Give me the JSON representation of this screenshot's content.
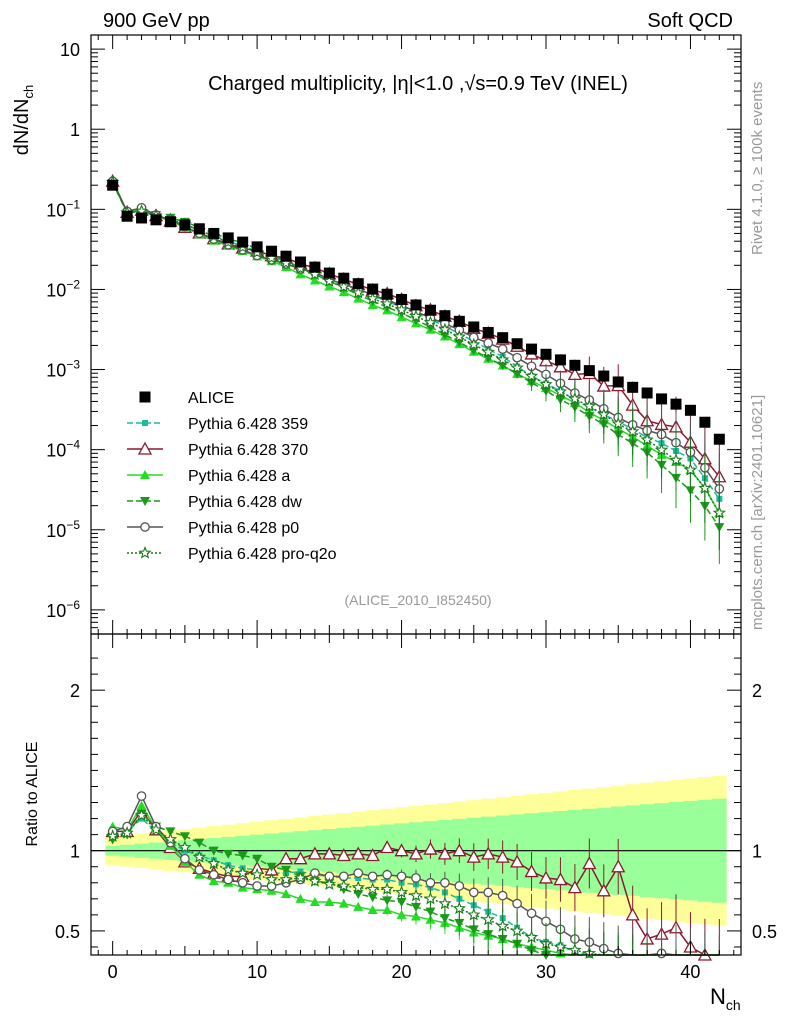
{
  "header": {
    "left": "900 GeV pp",
    "right": "Soft QCD"
  },
  "side_labels": {
    "rivet": "Rivet 4.1.0, ≥ 100k events",
    "mcplots": "mcplots.cern.ch [arXiv:2401.10621]"
  },
  "chart_data": [
    {
      "type": "scatter",
      "panel": "main",
      "title": "Charged multiplicity, |η|<1.0 ,√s=0.9 TeV (INEL)",
      "xlabel": "N",
      "xlabel_sub": "ch",
      "ylabel": "dN/dN",
      "ylabel_sub": "ch",
      "yscale": "log",
      "xlim": [
        -1.5,
        43.5
      ],
      "ylim": [
        5e-07,
        15
      ],
      "x_ticks": [
        0,
        10,
        20,
        30,
        40
      ],
      "y_ticks": [
        {
          "v": 10,
          "base": "10",
          "exp": ""
        },
        {
          "v": 1,
          "base": "1",
          "exp": ""
        },
        {
          "v": 0.1,
          "base": "10",
          "exp": "−1"
        },
        {
          "v": 0.01,
          "base": "10",
          "exp": "−2"
        },
        {
          "v": 0.001,
          "base": "10",
          "exp": "−3"
        },
        {
          "v": 0.0001,
          "base": "10",
          "exp": "−4"
        },
        {
          "v": 1e-05,
          "base": "10",
          "exp": "−5"
        },
        {
          "v": 1e-06,
          "base": "10",
          "exp": "−6"
        }
      ],
      "analysis_id": "(ALICE_2010_I852450)",
      "legend": [
        {
          "name": "ALICE",
          "color": "#000000",
          "marker": "square",
          "dash": "none"
        },
        {
          "name": "Pythia 6.428 359",
          "color": "#1abc9c",
          "marker": "square-small",
          "dash": "dashed"
        },
        {
          "name": "Pythia 6.428 370",
          "color": "#8b1a2e",
          "marker": "triangle-open",
          "dash": "solid"
        },
        {
          "name": "Pythia 6.428 a",
          "color": "#22dd22",
          "marker": "triangle",
          "dash": "solid"
        },
        {
          "name": "Pythia 6.428 dw",
          "color": "#1a9a1a",
          "marker": "triangle-down",
          "dash": "dashed"
        },
        {
          "name": "Pythia 6.428 p0",
          "color": "#555555",
          "marker": "circle-open",
          "dash": "solid"
        },
        {
          "name": "Pythia 6.428 pro-q2o",
          "color": "#1a7a1a",
          "marker": "star-open",
          "dash": "dotted"
        }
      ],
      "x": [
        0,
        1,
        2,
        3,
        4,
        5,
        6,
        7,
        8,
        9,
        10,
        11,
        12,
        13,
        14,
        15,
        16,
        17,
        18,
        19,
        20,
        21,
        22,
        23,
        24,
        25,
        26,
        27,
        28,
        29,
        30,
        31,
        32,
        33,
        34,
        35,
        36,
        37,
        38,
        39,
        40,
        41,
        42
      ],
      "data_values": [
        0.2,
        0.082,
        0.078,
        0.074,
        0.07,
        0.064,
        0.057,
        0.05,
        0.044,
        0.039,
        0.034,
        0.03,
        0.026,
        0.022,
        0.019,
        0.016,
        0.0138,
        0.0118,
        0.0101,
        0.0087,
        0.0075,
        0.0064,
        0.0055,
        0.0047,
        0.004,
        0.0034,
        0.0029,
        0.0025,
        0.0021,
        0.0018,
        0.00155,
        0.00132,
        0.00113,
        0.00097,
        0.00083,
        0.0007,
        0.0006,
        0.00051,
        0.00043,
        0.00037,
        0.00031,
        0.00022,
        0.000135
      ],
      "series": [
        {
          "name": "Pythia 6.428 359",
          "ratio": [
            1.1,
            1.12,
            1.2,
            1.12,
            1.05,
            1.0,
            0.97,
            0.94,
            0.91,
            0.89,
            0.88,
            0.86,
            0.86,
            0.87,
            0.85,
            0.84,
            0.83,
            0.83,
            0.82,
            0.82,
            0.8,
            0.79,
            0.77,
            0.74,
            0.7,
            0.66,
            0.62,
            0.58,
            0.52,
            0.46,
            0.43,
            0.41,
            0.37,
            0.35,
            0.33,
            0.32,
            0.3,
            0.28,
            0.28,
            0.26,
            0.25,
            0.2,
            0.18
          ]
        },
        {
          "name": "Pythia 6.428 370",
          "ratio": [
            1.12,
            1.12,
            1.25,
            1.13,
            1.02,
            0.93,
            0.89,
            0.86,
            0.84,
            0.84,
            0.89,
            0.88,
            0.95,
            0.95,
            0.98,
            0.98,
            0.97,
            0.98,
            0.97,
            1.02,
            1.0,
            0.98,
            1.01,
            0.98,
            1.0,
            0.96,
            0.98,
            0.96,
            0.93,
            0.87,
            0.83,
            0.82,
            0.77,
            0.92,
            0.75,
            0.9,
            0.6,
            0.45,
            0.48,
            0.52,
            0.4,
            0.35,
            0.34
          ]
        },
        {
          "name": "Pythia 6.428 a",
          "ratio": [
            1.15,
            1.13,
            1.28,
            1.14,
            1.03,
            0.93,
            0.85,
            0.81,
            0.8,
            0.77,
            0.76,
            0.75,
            0.73,
            0.7,
            0.68,
            0.68,
            0.67,
            0.65,
            0.63,
            0.63,
            0.6,
            0.59,
            0.57,
            0.55,
            0.52,
            0.49,
            0.47,
            0.45,
            0.42,
            0.4,
            0.38,
            0.36,
            0.34,
            0.3,
            0.28,
            0.26,
            0.24,
            0.22,
            0.2,
            0.19,
            0.18,
            0.15,
            0.12
          ]
        },
        {
          "name": "Pythia 6.428 dw",
          "ratio": [
            1.07,
            1.1,
            1.23,
            1.15,
            1.12,
            1.09,
            1.05,
            1.0,
            0.98,
            0.97,
            0.95,
            0.9,
            0.88,
            0.84,
            0.81,
            0.8,
            0.76,
            0.73,
            0.71,
            0.69,
            0.68,
            0.65,
            0.62,
            0.58,
            0.55,
            0.51,
            0.48,
            0.45,
            0.42,
            0.38,
            0.35,
            0.32,
            0.3,
            0.27,
            0.25,
            0.22,
            0.2,
            0.18,
            0.15,
            0.12,
            0.1,
            0.09,
            0.08
          ]
        },
        {
          "name": "Pythia 6.428 p0",
          "ratio": [
            1.12,
            1.15,
            1.34,
            1.15,
            1.05,
            0.95,
            0.88,
            0.85,
            0.82,
            0.8,
            0.78,
            0.78,
            0.8,
            0.82,
            0.86,
            0.84,
            0.84,
            0.86,
            0.84,
            0.85,
            0.84,
            0.83,
            0.8,
            0.8,
            0.78,
            0.74,
            0.74,
            0.72,
            0.67,
            0.61,
            0.56,
            0.51,
            0.45,
            0.43,
            0.39,
            0.36,
            0.34,
            0.34,
            0.36,
            0.33,
            0.3,
            0.27,
            0.24
          ]
        },
        {
          "name": "Pythia 6.428 pro-q2o",
          "ratio": [
            1.09,
            1.11,
            1.22,
            1.13,
            1.07,
            1.02,
            0.96,
            0.92,
            0.88,
            0.86,
            0.85,
            0.82,
            0.82,
            0.83,
            0.81,
            0.79,
            0.78,
            0.77,
            0.76,
            0.76,
            0.74,
            0.72,
            0.7,
            0.67,
            0.64,
            0.6,
            0.57,
            0.53,
            0.5,
            0.46,
            0.42,
            0.4,
            0.38,
            0.36,
            0.33,
            0.3,
            0.28,
            0.26,
            0.23,
            0.2,
            0.18,
            0.15,
            0.12
          ]
        }
      ]
    },
    {
      "type": "scatter",
      "panel": "ratio",
      "ylabel": "Ratio to ALICE",
      "xlim": [
        -1.5,
        43.5
      ],
      "ylim": [
        0.35,
        2.35
      ],
      "y_ticks": [
        0.5,
        1,
        2
      ],
      "reference": 1.0
    }
  ]
}
